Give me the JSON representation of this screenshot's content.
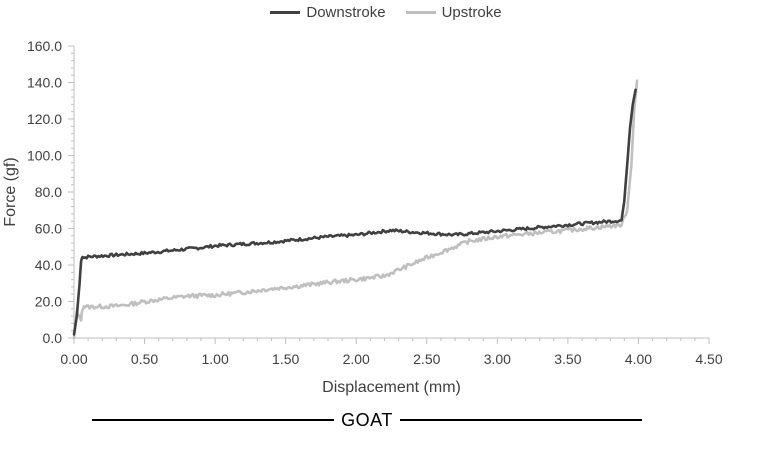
{
  "chart_data": {
    "type": "line",
    "title": "",
    "xlabel": "Displacement (mm)",
    "ylabel": "Force (gf)",
    "xlim": [
      0,
      4.5
    ],
    "ylim": [
      0,
      160
    ],
    "xticks": [
      "0.00",
      "0.50",
      "1.00",
      "1.50",
      "2.00",
      "2.50",
      "3.00",
      "3.50",
      "4.00",
      "4.50"
    ],
    "yticks": [
      "0.0",
      "20.0",
      "40.0",
      "60.0",
      "80.0",
      "100.0",
      "120.0",
      "140.0",
      "160.0"
    ],
    "legend_position": "top-center",
    "series": [
      {
        "name": "Downstroke",
        "color": "#404040",
        "x": [
          0.0,
          0.02,
          0.04,
          0.05,
          0.06,
          0.07,
          0.1,
          0.3,
          0.5,
          0.7,
          0.9,
          1.0,
          1.2,
          1.4,
          1.6,
          1.8,
          2.0,
          2.1,
          2.2,
          2.25,
          2.4,
          2.6,
          2.7,
          3.0,
          3.5,
          3.88,
          3.9,
          3.92,
          3.94,
          3.96,
          3.98
        ],
        "y": [
          2,
          12,
          30,
          42,
          45,
          44,
          44.5,
          45.5,
          46.5,
          48,
          49.5,
          50.5,
          51.5,
          52.5,
          54,
          55.5,
          56.5,
          57.5,
          58.5,
          59,
          58,
          57,
          56.5,
          58.5,
          62,
          64.5,
          75,
          95,
          115,
          128,
          136
        ]
      },
      {
        "name": "Upstroke",
        "color": "#bfbfbf",
        "x": [
          0.0,
          0.02,
          0.04,
          0.05,
          0.06,
          0.07,
          0.1,
          0.3,
          0.4,
          0.5,
          0.7,
          0.8,
          1.0,
          1.2,
          1.4,
          1.6,
          1.8,
          2.0,
          2.2,
          2.35,
          2.5,
          2.6,
          2.7,
          2.8,
          3.0,
          3.2,
          3.5,
          3.88,
          3.92,
          3.95,
          3.97,
          3.99
        ],
        "y": [
          0,
          14,
          11,
          10.5,
          16,
          17.5,
          17,
          17.5,
          18.5,
          20,
          22,
          23,
          23.5,
          25,
          27,
          28.5,
          30.5,
          32,
          34,
          39,
          44,
          47,
          50,
          53,
          55.5,
          57,
          59,
          62,
          70,
          95,
          125,
          141
        ]
      }
    ]
  },
  "footer": {
    "label": "GOAT"
  }
}
